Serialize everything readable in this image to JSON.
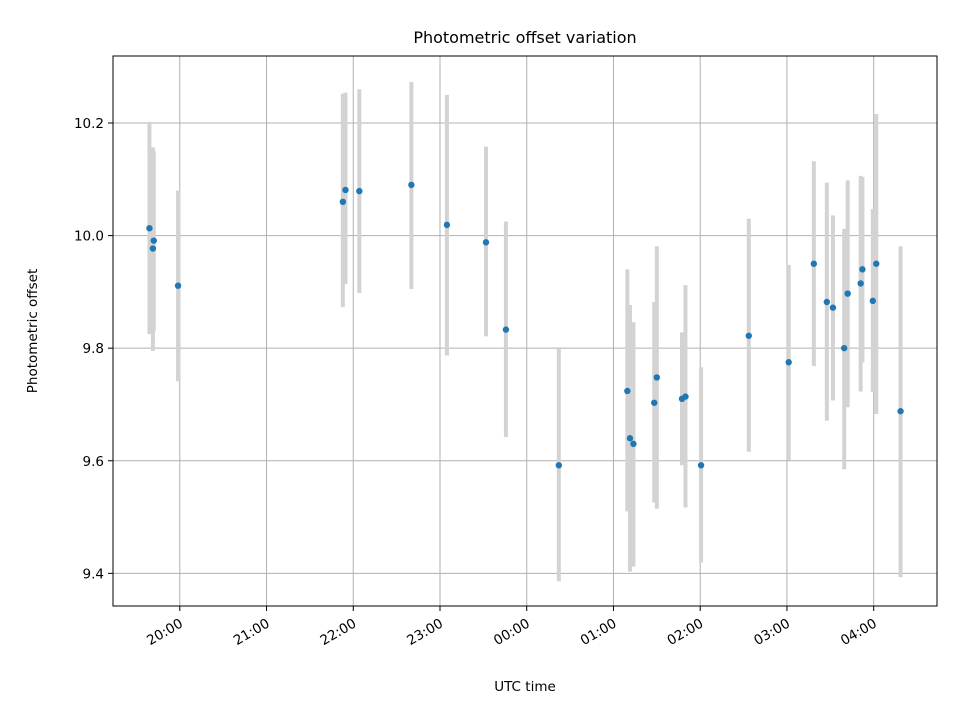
{
  "chart_data": {
    "type": "scatter",
    "title": "Photometric offset variation",
    "xlabel": "UTC time",
    "ylabel": "Photometric offset",
    "grid": true,
    "xlim": [
      -0.77,
      8.73
    ],
    "ylim": [
      9.342,
      10.319
    ],
    "x_ticks": [
      {
        "x": 0,
        "label": "20:00"
      },
      {
        "x": 1,
        "label": "21:00"
      },
      {
        "x": 2,
        "label": "22:00"
      },
      {
        "x": 3,
        "label": "23:00"
      },
      {
        "x": 4,
        "label": "00:00"
      },
      {
        "x": 5,
        "label": "01:00"
      },
      {
        "x": 6,
        "label": "02:00"
      },
      {
        "x": 7,
        "label": "03:00"
      },
      {
        "x": 8,
        "label": "04:00"
      }
    ],
    "y_ticks": [
      {
        "y": 9.4,
        "label": "9.4"
      },
      {
        "y": 9.6,
        "label": "9.6"
      },
      {
        "y": 9.8,
        "label": "9.8"
      },
      {
        "y": 10.0,
        "label": "10.0"
      },
      {
        "y": 10.2,
        "label": "10.2"
      }
    ],
    "points": [
      {
        "x": -0.35,
        "y": 10.013,
        "lo": 9.825,
        "hi": 10.202
      },
      {
        "x": -0.31,
        "y": 9.977,
        "lo": 9.795,
        "hi": 10.157
      },
      {
        "x": -0.3,
        "y": 9.991,
        "lo": 9.83,
        "hi": 10.15
      },
      {
        "x": -0.02,
        "y": 9.911,
        "lo": 9.741,
        "hi": 10.08
      },
      {
        "x": 1.88,
        "y": 10.06,
        "lo": 9.873,
        "hi": 10.252
      },
      {
        "x": 1.91,
        "y": 10.081,
        "lo": 9.914,
        "hi": 10.254
      },
      {
        "x": 2.07,
        "y": 10.079,
        "lo": 9.898,
        "hi": 10.26
      },
      {
        "x": 2.67,
        "y": 10.09,
        "lo": 9.905,
        "hi": 10.273
      },
      {
        "x": 3.08,
        "y": 10.019,
        "lo": 9.787,
        "hi": 10.25
      },
      {
        "x": 3.53,
        "y": 9.988,
        "lo": 9.821,
        "hi": 10.158
      },
      {
        "x": 3.76,
        "y": 9.833,
        "lo": 9.642,
        "hi": 10.025
      },
      {
        "x": 4.37,
        "y": 9.592,
        "lo": 9.386,
        "hi": 9.799
      },
      {
        "x": 5.16,
        "y": 9.724,
        "lo": 9.51,
        "hi": 9.94
      },
      {
        "x": 5.19,
        "y": 9.64,
        "lo": 9.403,
        "hi": 9.877
      },
      {
        "x": 5.23,
        "y": 9.63,
        "lo": 9.412,
        "hi": 9.846
      },
      {
        "x": 5.47,
        "y": 9.703,
        "lo": 9.526,
        "hi": 9.882
      },
      {
        "x": 5.5,
        "y": 9.748,
        "lo": 9.515,
        "hi": 9.981
      },
      {
        "x": 5.79,
        "y": 9.71,
        "lo": 9.592,
        "hi": 9.828
      },
      {
        "x": 5.83,
        "y": 9.714,
        "lo": 9.517,
        "hi": 9.912
      },
      {
        "x": 6.01,
        "y": 9.592,
        "lo": 9.419,
        "hi": 9.766
      },
      {
        "x": 6.56,
        "y": 9.822,
        "lo": 9.616,
        "hi": 10.03
      },
      {
        "x": 7.02,
        "y": 9.775,
        "lo": 9.601,
        "hi": 9.948
      },
      {
        "x": 7.31,
        "y": 9.95,
        "lo": 9.768,
        "hi": 10.132
      },
      {
        "x": 7.46,
        "y": 9.882,
        "lo": 9.671,
        "hi": 10.094
      },
      {
        "x": 7.53,
        "y": 9.872,
        "lo": 9.707,
        "hi": 10.036
      },
      {
        "x": 7.66,
        "y": 9.8,
        "lo": 9.585,
        "hi": 10.012
      },
      {
        "x": 7.7,
        "y": 9.897,
        "lo": 9.695,
        "hi": 10.098
      },
      {
        "x": 7.85,
        "y": 9.915,
        "lo": 9.723,
        "hi": 10.106
      },
      {
        "x": 7.87,
        "y": 9.94,
        "lo": 9.775,
        "hi": 10.104
      },
      {
        "x": 7.99,
        "y": 9.884,
        "lo": 9.722,
        "hi": 10.047
      },
      {
        "x": 8.03,
        "y": 9.95,
        "lo": 9.683,
        "hi": 10.216
      },
      {
        "x": 8.31,
        "y": 9.688,
        "lo": 9.393,
        "hi": 9.981
      }
    ]
  }
}
